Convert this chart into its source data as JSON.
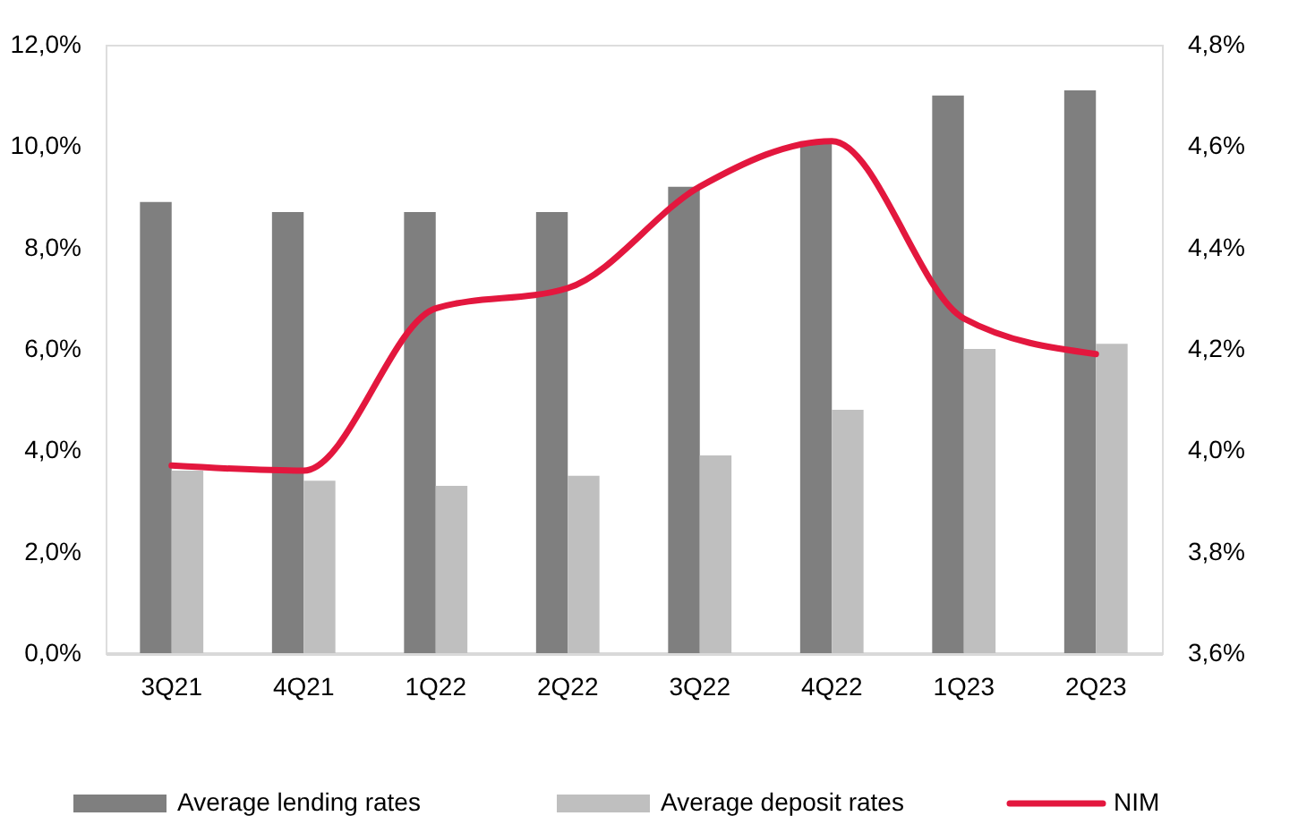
{
  "chart_data": {
    "type": "bar",
    "categories": [
      "3Q21",
      "4Q21",
      "1Q22",
      "2Q22",
      "3Q22",
      "4Q22",
      "1Q23",
      "2Q23"
    ],
    "series": [
      {
        "name": "Average lending rates",
        "color": "#7f7f7f",
        "values": [
          8.9,
          8.7,
          8.7,
          8.7,
          9.2,
          10.1,
          11.0,
          11.1
        ]
      },
      {
        "name": "Average deposit rates",
        "color": "#bfbfbf",
        "values": [
          3.6,
          3.4,
          3.3,
          3.5,
          3.9,
          4.8,
          6.0,
          6.1
        ]
      },
      {
        "name": "NIM",
        "type": "line",
        "axis": "y2",
        "color": "#e3173e",
        "values": [
          3.97,
          3.96,
          4.28,
          4.32,
          4.52,
          4.61,
          4.26,
          4.19
        ]
      }
    ],
    "ylim": [
      0,
      12
    ],
    "yticks": [
      {
        "value": 0,
        "label": "0,0%"
      },
      {
        "value": 2,
        "label": "2,0%"
      },
      {
        "value": 4,
        "label": "4,0%"
      },
      {
        "value": 6,
        "label": "6,0%"
      },
      {
        "value": 8,
        "label": "8,0%"
      },
      {
        "value": 10,
        "label": "10,0%"
      },
      {
        "value": 12,
        "label": "12,0%"
      }
    ],
    "y2lim": [
      3.6,
      4.8
    ],
    "y2ticks": [
      {
        "value": 3.6,
        "label": "3,6%"
      },
      {
        "value": 3.8,
        "label": "3,8%"
      },
      {
        "value": 4.0,
        "label": "4,0%"
      },
      {
        "value": 4.2,
        "label": "4,2%"
      },
      {
        "value": 4.4,
        "label": "4,4%"
      },
      {
        "value": 4.6,
        "label": "4,6%"
      },
      {
        "value": 4.8,
        "label": "4,8%"
      }
    ],
    "grid": false,
    "legend": "bottom",
    "marker": "none",
    "line_style": "solid"
  }
}
